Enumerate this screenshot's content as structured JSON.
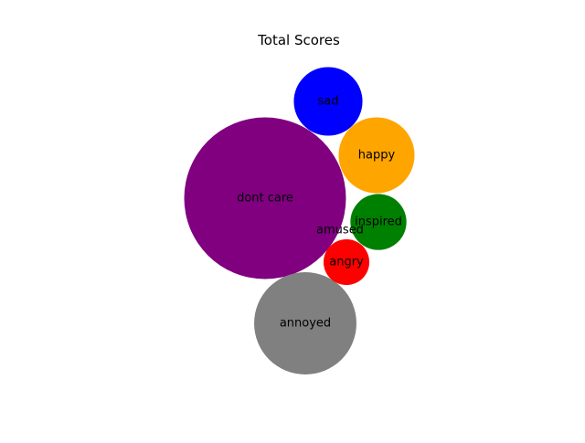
{
  "chart_data": {
    "type": "bubble",
    "title": "Total Scores",
    "grid": false,
    "axes_visible": false,
    "bubbles": [
      {
        "label": "dont care",
        "value": 100,
        "color": "#800080"
      },
      {
        "label": "annoyed",
        "value": 40,
        "color": "#808080"
      },
      {
        "label": "happy",
        "value": 22,
        "color": "#FFA500"
      },
      {
        "label": "sad",
        "value": 18,
        "color": "#0000FF"
      },
      {
        "label": "inspired",
        "value": 12,
        "color": "#008000"
      },
      {
        "label": "angry",
        "value": 8,
        "color": "#FF0000"
      },
      {
        "label": "amused",
        "value": 0,
        "color": "#000000"
      }
    ]
  }
}
